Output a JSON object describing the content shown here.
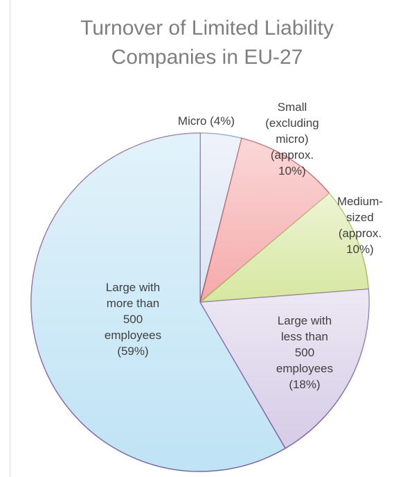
{
  "chart_data": {
    "type": "pie",
    "title": "Turnover of Limited Liability Companies in EU-27",
    "title_lines": [
      "Turnover of Limited Liability",
      "Companies in EU-27"
    ],
    "slices": [
      {
        "label": "Micro (4%)",
        "label_lines": [
          "Micro (4%)"
        ],
        "value": 4,
        "color": "#dbe4f4",
        "edge": "#7092c8"
      },
      {
        "label": "Small (excluding micro) (approx. 10%)",
        "label_lines": [
          "Small",
          "(excluding",
          "micro)",
          "(approx.",
          "10%)"
        ],
        "value": 10,
        "color": "#f5a9a9",
        "edge": "#c0504d"
      },
      {
        "label": "Medium-sized (approx. 10%)",
        "label_lines": [
          "Medium-",
          "sized",
          "(approx.",
          "10%)"
        ],
        "value": 10,
        "color": "#d6e7a0",
        "edge": "#9bbb59"
      },
      {
        "label": "Large with less than 500 employees (18%)",
        "label_lines": [
          "Large with",
          "less than",
          "500",
          "employees",
          "(18%)"
        ],
        "value": 18,
        "color": "#d6cce6",
        "edge": "#8064a2"
      },
      {
        "label": "Large with more than 500 employees (59%)",
        "label_lines": [
          "Large with",
          "more than",
          "500",
          "employees",
          "(59%)"
        ],
        "value": 59,
        "color": "#bfe3f5",
        "edge": "#8064a2"
      }
    ]
  }
}
